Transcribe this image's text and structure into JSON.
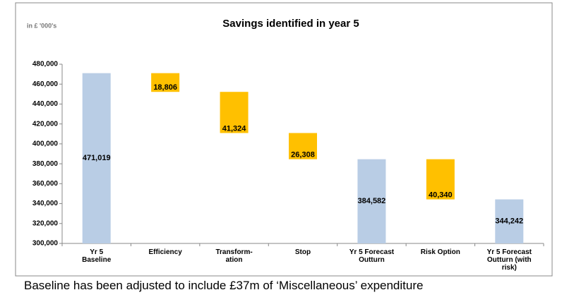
{
  "chart_data": {
    "type": "waterfall",
    "title": "Savings identified in year 5",
    "y_label": "in £ '000's",
    "categories": [
      "Yr 5\nBaseline",
      "Efficiency",
      "Transform-\nation",
      "Stop",
      "Yr 5 Forecast\nOutturn",
      "Risk Option",
      "Yr 5 Forecast\nOutturn (with\nrisk)"
    ],
    "values": [
      471019,
      18806,
      41324,
      26308,
      384582,
      40340,
      344242
    ],
    "value_labels": [
      "471,019",
      "18,806",
      "41,324",
      "26,308",
      "384,582",
      "40,340",
      "344,242"
    ],
    "measure": [
      "total",
      "decrease",
      "decrease",
      "decrease",
      "total",
      "decrease",
      "total"
    ],
    "colors": {
      "total": "#b9cde5",
      "decrease": "#ffc000"
    },
    "ylim": [
      300000,
      480000
    ],
    "yticks": [
      {
        "value": 300000,
        "label": "300,000"
      },
      {
        "value": 320000,
        "label": "320,000"
      },
      {
        "value": 340000,
        "label": "340,000"
      },
      {
        "value": 360000,
        "label": "360,000"
      },
      {
        "value": 380000,
        "label": "380,000"
      },
      {
        "value": 400000,
        "label": "400,000"
      },
      {
        "value": 420000,
        "label": "420,000"
      },
      {
        "value": 440000,
        "label": "440,000"
      },
      {
        "value": 460000,
        "label": "460,000"
      },
      {
        "value": 480000,
        "label": "480,000"
      }
    ],
    "grid": false,
    "footnote": "Baseline has been adjusted to include £37m of ‘Miscellaneous’ expenditure"
  }
}
